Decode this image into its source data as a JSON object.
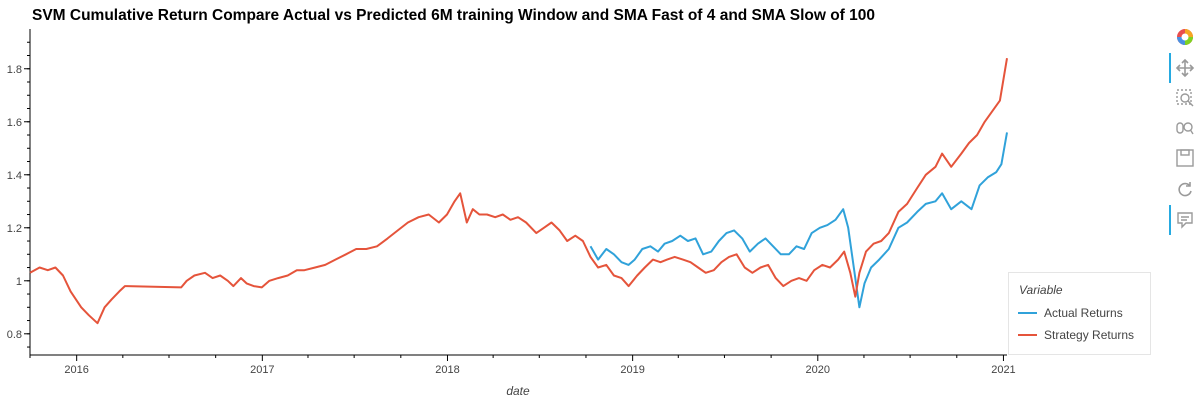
{
  "title": "SVM Cumulative Return Compare Actual vs Predicted 6M training Window and SMA Fast of 4 and SMA Slow of 100",
  "legend": {
    "title": "Variable",
    "items": [
      {
        "label": "Actual Returns",
        "color": "#30a2da"
      },
      {
        "label": "Strategy Returns",
        "color": "#e5543b"
      }
    ]
  },
  "toolbar": {
    "tools": [
      "bokeh-logo-icon",
      "pan-icon",
      "box-zoom-icon",
      "wheel-zoom-icon",
      "save-icon",
      "reset-icon",
      "hover-icon"
    ]
  },
  "chart_data": {
    "type": "line",
    "xlabel": "date",
    "ylabel": "",
    "x_ticks": [
      "2016",
      "2017",
      "2018",
      "2019",
      "2020",
      "2021"
    ],
    "y_ticks": [
      "0.8",
      "1",
      "1.2",
      "1.4",
      "1.6",
      "1.8"
    ],
    "xlim": [
      "2015-10-01",
      "2021-01-08"
    ],
    "ylim": [
      0.72,
      1.95
    ],
    "grid": false,
    "legend_position": "right",
    "series": [
      {
        "name": "Actual Returns",
        "color": "#30a2da",
        "points": [
          [
            "2018-10-10",
            1.13
          ],
          [
            "2018-10-25",
            1.08
          ],
          [
            "2018-11-10",
            1.12
          ],
          [
            "2018-11-25",
            1.1
          ],
          [
            "2018-12-10",
            1.07
          ],
          [
            "2018-12-24",
            1.06
          ],
          [
            "2019-01-05",
            1.08
          ],
          [
            "2019-01-20",
            1.12
          ],
          [
            "2019-02-05",
            1.13
          ],
          [
            "2019-02-20",
            1.11
          ],
          [
            "2019-03-05",
            1.14
          ],
          [
            "2019-03-20",
            1.15
          ],
          [
            "2019-04-05",
            1.17
          ],
          [
            "2019-04-20",
            1.15
          ],
          [
            "2019-05-05",
            1.16
          ],
          [
            "2019-05-20",
            1.1
          ],
          [
            "2019-06-05",
            1.11
          ],
          [
            "2019-06-20",
            1.15
          ],
          [
            "2019-07-05",
            1.18
          ],
          [
            "2019-07-20",
            1.19
          ],
          [
            "2019-08-05",
            1.16
          ],
          [
            "2019-08-20",
            1.11
          ],
          [
            "2019-09-05",
            1.14
          ],
          [
            "2019-09-20",
            1.16
          ],
          [
            "2019-10-05",
            1.13
          ],
          [
            "2019-10-20",
            1.1
          ],
          [
            "2019-11-05",
            1.1
          ],
          [
            "2019-11-20",
            1.13
          ],
          [
            "2019-12-05",
            1.12
          ],
          [
            "2019-12-20",
            1.18
          ],
          [
            "2020-01-05",
            1.2
          ],
          [
            "2020-01-20",
            1.21
          ],
          [
            "2020-02-05",
            1.23
          ],
          [
            "2020-02-20",
            1.27
          ],
          [
            "2020-03-01",
            1.2
          ],
          [
            "2020-03-12",
            1.05
          ],
          [
            "2020-03-23",
            0.9
          ],
          [
            "2020-04-02",
            0.99
          ],
          [
            "2020-04-15",
            1.05
          ],
          [
            "2020-05-01",
            1.08
          ],
          [
            "2020-05-20",
            1.12
          ],
          [
            "2020-06-08",
            1.2
          ],
          [
            "2020-06-25",
            1.22
          ],
          [
            "2020-07-15",
            1.26
          ],
          [
            "2020-08-01",
            1.29
          ],
          [
            "2020-08-20",
            1.3
          ],
          [
            "2020-09-02",
            1.33
          ],
          [
            "2020-09-20",
            1.27
          ],
          [
            "2020-10-10",
            1.3
          ],
          [
            "2020-10-30",
            1.27
          ],
          [
            "2020-11-15",
            1.36
          ],
          [
            "2020-12-01",
            1.39
          ],
          [
            "2020-12-18",
            1.41
          ],
          [
            "2020-12-28",
            1.44
          ],
          [
            "2021-01-08",
            1.56
          ]
        ]
      },
      {
        "name": "Strategy Returns",
        "color": "#e5543b",
        "points": [
          [
            "2015-10-01",
            1.03
          ],
          [
            "2015-10-20",
            1.05
          ],
          [
            "2015-11-05",
            1.04
          ],
          [
            "2015-11-20",
            1.05
          ],
          [
            "2015-12-05",
            1.02
          ],
          [
            "2015-12-20",
            0.96
          ],
          [
            "2016-01-10",
            0.9
          ],
          [
            "2016-01-25",
            0.87
          ],
          [
            "2016-02-11",
            0.84
          ],
          [
            "2016-02-25",
            0.9
          ],
          [
            "2016-03-10",
            0.93
          ],
          [
            "2016-03-25",
            0.96
          ],
          [
            "2016-04-05",
            0.98
          ],
          [
            "2016-07-25",
            0.975
          ],
          [
            "2016-08-05",
            1.0
          ],
          [
            "2016-08-20",
            1.02
          ],
          [
            "2016-09-10",
            1.03
          ],
          [
            "2016-09-25",
            1.01
          ],
          [
            "2016-10-10",
            1.02
          ],
          [
            "2016-10-25",
            1.0
          ],
          [
            "2016-11-05",
            0.98
          ],
          [
            "2016-11-20",
            1.01
          ],
          [
            "2016-12-01",
            0.99
          ],
          [
            "2016-12-15",
            0.98
          ],
          [
            "2016-12-31",
            0.975
          ],
          [
            "2017-01-15",
            1.0
          ],
          [
            "2017-02-01",
            1.01
          ],
          [
            "2017-02-20",
            1.02
          ],
          [
            "2017-03-10",
            1.04
          ],
          [
            "2017-03-25",
            1.04
          ],
          [
            "2017-04-15",
            1.05
          ],
          [
            "2017-05-05",
            1.06
          ],
          [
            "2017-05-25",
            1.08
          ],
          [
            "2017-06-15",
            1.1
          ],
          [
            "2017-07-05",
            1.12
          ],
          [
            "2017-07-25",
            1.12
          ],
          [
            "2017-08-15",
            1.13
          ],
          [
            "2017-09-05",
            1.16
          ],
          [
            "2017-09-25",
            1.19
          ],
          [
            "2017-10-15",
            1.22
          ],
          [
            "2017-11-05",
            1.24
          ],
          [
            "2017-11-25",
            1.25
          ],
          [
            "2017-12-15",
            1.22
          ],
          [
            "2017-12-31",
            1.25
          ],
          [
            "2018-01-15",
            1.3
          ],
          [
            "2018-01-26",
            1.33
          ],
          [
            "2018-02-08",
            1.22
          ],
          [
            "2018-02-20",
            1.27
          ],
          [
            "2018-03-05",
            1.25
          ],
          [
            "2018-03-20",
            1.25
          ],
          [
            "2018-04-05",
            1.24
          ],
          [
            "2018-04-20",
            1.25
          ],
          [
            "2018-05-05",
            1.23
          ],
          [
            "2018-05-20",
            1.24
          ],
          [
            "2018-06-05",
            1.22
          ],
          [
            "2018-06-25",
            1.18
          ],
          [
            "2018-07-10",
            1.2
          ],
          [
            "2018-07-25",
            1.22
          ],
          [
            "2018-08-10",
            1.19
          ],
          [
            "2018-08-25",
            1.15
          ],
          [
            "2018-09-10",
            1.17
          ],
          [
            "2018-09-25",
            1.15
          ],
          [
            "2018-10-10",
            1.09
          ],
          [
            "2018-10-25",
            1.05
          ],
          [
            "2018-11-10",
            1.06
          ],
          [
            "2018-11-25",
            1.02
          ],
          [
            "2018-12-10",
            1.01
          ],
          [
            "2018-12-24",
            0.98
          ],
          [
            "2019-01-10",
            1.02
          ],
          [
            "2019-01-25",
            1.05
          ],
          [
            "2019-02-10",
            1.08
          ],
          [
            "2019-02-25",
            1.07
          ],
          [
            "2019-03-10",
            1.08
          ],
          [
            "2019-03-25",
            1.09
          ],
          [
            "2019-04-10",
            1.08
          ],
          [
            "2019-04-25",
            1.07
          ],
          [
            "2019-05-10",
            1.05
          ],
          [
            "2019-05-25",
            1.03
          ],
          [
            "2019-06-10",
            1.04
          ],
          [
            "2019-06-25",
            1.07
          ],
          [
            "2019-07-10",
            1.09
          ],
          [
            "2019-07-25",
            1.1
          ],
          [
            "2019-08-10",
            1.05
          ],
          [
            "2019-08-25",
            1.03
          ],
          [
            "2019-09-10",
            1.05
          ],
          [
            "2019-09-25",
            1.06
          ],
          [
            "2019-10-10",
            1.01
          ],
          [
            "2019-10-25",
            0.98
          ],
          [
            "2019-11-10",
            1.0
          ],
          [
            "2019-11-25",
            1.01
          ],
          [
            "2019-12-10",
            1.0
          ],
          [
            "2019-12-25",
            1.04
          ],
          [
            "2020-01-10",
            1.06
          ],
          [
            "2020-01-25",
            1.05
          ],
          [
            "2020-02-10",
            1.08
          ],
          [
            "2020-02-22",
            1.11
          ],
          [
            "2020-03-05",
            1.03
          ],
          [
            "2020-03-15",
            0.94
          ],
          [
            "2020-03-23",
            1.03
          ],
          [
            "2020-04-05",
            1.11
          ],
          [
            "2020-04-20",
            1.14
          ],
          [
            "2020-05-05",
            1.15
          ],
          [
            "2020-05-20",
            1.18
          ],
          [
            "2020-06-08",
            1.26
          ],
          [
            "2020-06-25",
            1.29
          ],
          [
            "2020-07-15",
            1.35
          ],
          [
            "2020-08-01",
            1.4
          ],
          [
            "2020-08-20",
            1.43
          ],
          [
            "2020-09-02",
            1.48
          ],
          [
            "2020-09-20",
            1.43
          ],
          [
            "2020-10-10",
            1.48
          ],
          [
            "2020-10-25",
            1.52
          ],
          [
            "2020-11-10",
            1.55
          ],
          [
            "2020-11-25",
            1.6
          ],
          [
            "2020-12-10",
            1.64
          ],
          [
            "2020-12-25",
            1.68
          ],
          [
            "2021-01-08",
            1.84
          ]
        ]
      }
    ]
  }
}
